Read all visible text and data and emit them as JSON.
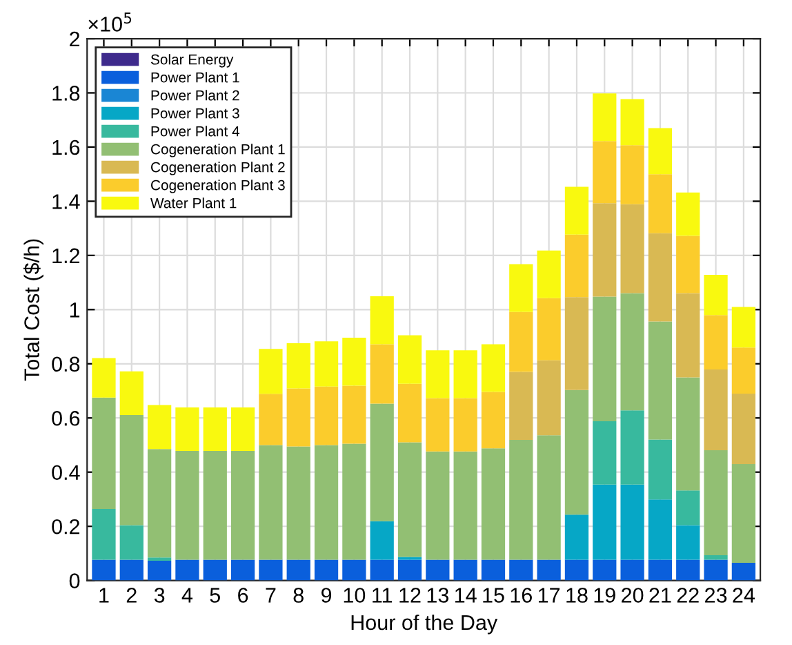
{
  "chart_data": {
    "type": "bar",
    "stacked": true,
    "xlabel": "Hour of the Day",
    "ylabel": "Total Cost ($/h)",
    "annotations": [
      "×10$^{5}$"
    ],
    "categories": [
      "1",
      "2",
      "3",
      "4",
      "5",
      "6",
      "7",
      "8",
      "9",
      "10",
      "11",
      "12",
      "13",
      "14",
      "15",
      "16",
      "17",
      "18",
      "19",
      "20",
      "21",
      "22",
      "23",
      "24"
    ],
    "ylim": [
      0,
      2
    ],
    "yticks": [
      0,
      0.2,
      0.4,
      0.6,
      0.8,
      {
        "value": 1,
        "label": "1"
      },
      1.2,
      1.4,
      1.6,
      1.8,
      2
    ],
    "grid": true,
    "legend": "top left",
    "series": [
      {
        "name": "Solar Energy",
        "color": "#3e2a8c",
        "values": [
          0,
          0,
          0,
          0,
          0,
          0,
          0,
          0,
          0,
          0,
          0,
          0,
          0,
          0,
          0,
          0,
          0,
          0,
          0,
          0,
          0,
          0,
          0,
          0
        ]
      },
      {
        "name": "Power Plant 1",
        "color": "#0a5fdc",
        "values": [
          0.077,
          0.077,
          0.073,
          0.077,
          0.077,
          0.077,
          0.077,
          0.077,
          0.077,
          0.077,
          0.077,
          0.077,
          0.077,
          0.077,
          0.077,
          0.077,
          0.077,
          0.077,
          0.077,
          0.077,
          0.077,
          0.077,
          0.077,
          0.065
        ]
      },
      {
        "name": "Power Plant 2",
        "color": "#1a86d4",
        "values": [
          0,
          0,
          0,
          0,
          0,
          0,
          0,
          0,
          0,
          0,
          0,
          0,
          0,
          0,
          0,
          0,
          0,
          0,
          0,
          0,
          0,
          0,
          0,
          0
        ]
      },
      {
        "name": "Power Plant 3",
        "color": "#06a7c6",
        "values": [
          0,
          0,
          0,
          0,
          0,
          0,
          0,
          0,
          0,
          0,
          0.142,
          0.01,
          0,
          0,
          0,
          0,
          0,
          0.166,
          0.277,
          0.277,
          0.222,
          0.127,
          0,
          0
        ]
      },
      {
        "name": "Power Plant 4",
        "color": "#38b99e",
        "values": [
          0.187,
          0.127,
          0.012,
          0,
          0,
          0,
          0,
          0,
          0,
          0,
          0,
          0,
          0,
          0,
          0,
          0,
          0,
          0,
          0.234,
          0.274,
          0.221,
          0.128,
          0.016,
          0
        ]
      },
      {
        "name": "Cogeneration Plant 1",
        "color": "#92bf73",
        "values": [
          0.411,
          0.407,
          0.4,
          0.401,
          0.401,
          0.401,
          0.423,
          0.418,
          0.423,
          0.428,
          0.434,
          0.423,
          0.399,
          0.399,
          0.411,
          0.442,
          0.459,
          0.46,
          0.46,
          0.433,
          0.436,
          0.418,
          0.388,
          0.365
        ]
      },
      {
        "name": "Cogeneration Plant 2",
        "color": "#d9b953",
        "values": [
          0,
          0,
          0,
          0,
          0,
          0,
          0,
          0,
          0,
          0,
          0,
          0,
          0,
          0,
          0,
          0.251,
          0.277,
          0.343,
          0.345,
          0.328,
          0.326,
          0.311,
          0.298,
          0.26
        ]
      },
      {
        "name": "Cogeneration Plant 3",
        "color": "#fbcc2c",
        "values": [
          0,
          0,
          0,
          0,
          0,
          0,
          0.189,
          0.214,
          0.216,
          0.214,
          0.219,
          0.216,
          0.197,
          0.197,
          0.208,
          0.221,
          0.229,
          0.231,
          0.229,
          0.218,
          0.218,
          0.211,
          0.201,
          0.17
        ]
      },
      {
        "name": "Water Plant 1",
        "color": "#f9f90f",
        "values": [
          0.146,
          0.161,
          0.163,
          0.161,
          0.161,
          0.161,
          0.166,
          0.167,
          0.167,
          0.177,
          0.177,
          0.179,
          0.177,
          0.177,
          0.176,
          0.177,
          0.176,
          0.176,
          0.176,
          0.17,
          0.17,
          0.16,
          0.148,
          0.15
        ]
      }
    ]
  }
}
